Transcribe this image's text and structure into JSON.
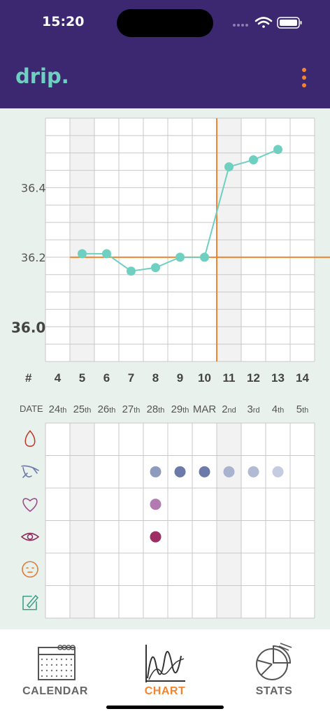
{
  "status": {
    "time": "15:20"
  },
  "app": {
    "logo": "drip.",
    "menu_icon": "more-vertical-icon"
  },
  "colors": {
    "header": "#3b2870",
    "accent_teal": "#6dd0c0",
    "accent_orange": "#f5842e",
    "background": "#e9f1ec"
  },
  "chart_data": {
    "type": "line",
    "title": "",
    "ylim": [
      35.9,
      36.6
    ],
    "y_ticks": [
      "36.4",
      "36.2",
      "36.0"
    ],
    "x_label": "#",
    "cycle_days": [
      "4",
      "5",
      "6",
      "7",
      "8",
      "9",
      "10",
      "11",
      "12",
      "13",
      "14"
    ],
    "series": [
      {
        "values": [
          null,
          36.21,
          36.21,
          36.16,
          36.17,
          36.2,
          36.2,
          36.46,
          36.48,
          36.51,
          null
        ],
        "color": "#6dd0c0"
      }
    ],
    "coverline": 36.2,
    "ovulation_after_day": "10",
    "date_label": "DATE",
    "dates": [
      {
        "n": "24",
        "s": "th"
      },
      {
        "n": "25",
        "s": "th"
      },
      {
        "n": "26",
        "s": "th"
      },
      {
        "n": "27",
        "s": "th"
      },
      {
        "n": "28",
        "s": "th"
      },
      {
        "n": "29",
        "s": "th"
      },
      {
        "n": "MAR",
        "s": ""
      },
      {
        "n": "2",
        "s": "nd"
      },
      {
        "n": "3",
        "s": "rd"
      },
      {
        "n": "4",
        "s": "th"
      },
      {
        "n": "5",
        "s": "th"
      }
    ],
    "symptom_rows": [
      {
        "icon": "bleeding-drop-icon",
        "color": "#c0392b",
        "marks": []
      },
      {
        "icon": "cervical-mucus-icon",
        "color": "#6b7aa8",
        "marks": [
          {
            "day": 4,
            "color": "#8e9bbd"
          },
          {
            "day": 5,
            "color": "#6b7aa8"
          },
          {
            "day": 6,
            "color": "#6b7aa8"
          },
          {
            "day": 7,
            "color": "#a9b2cf"
          },
          {
            "day": 8,
            "color": "#b2bad4"
          },
          {
            "day": 9,
            "color": "#c5cbe0"
          }
        ]
      },
      {
        "icon": "sex-heart-icon",
        "color": "#9b4e8e",
        "marks": [
          {
            "day": 4,
            "color": "#b27ab0"
          }
        ]
      },
      {
        "icon": "desire-eye-icon",
        "color": "#8e2e5e",
        "marks": [
          {
            "day": 4,
            "color": "#9e2d63"
          }
        ]
      },
      {
        "icon": "mood-face-icon",
        "color": "#e07b39",
        "marks": []
      },
      {
        "icon": "note-edit-icon",
        "color": "#3fa08a",
        "marks": []
      }
    ]
  },
  "tabs": [
    {
      "label": "CALENDAR",
      "icon": "calendar-icon",
      "active": false
    },
    {
      "label": "CHART",
      "icon": "chart-icon",
      "active": true
    },
    {
      "label": "STATS",
      "icon": "pie-chart-icon",
      "active": false
    }
  ]
}
